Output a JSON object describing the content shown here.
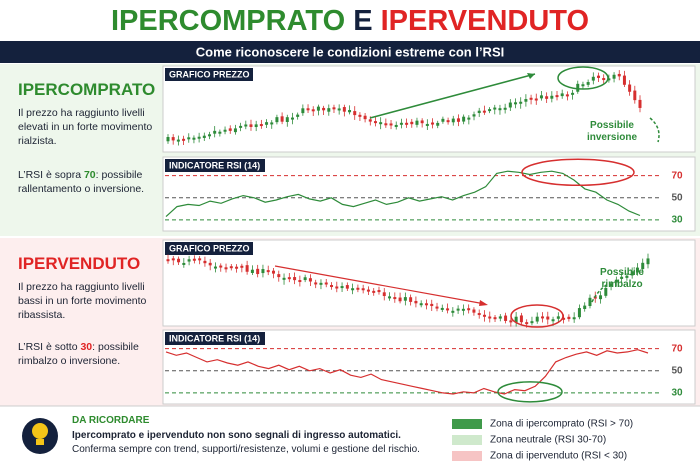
{
  "header": {
    "title_a": "IPERCOMPRATO",
    "title_b": "E",
    "title_c": "IPERVENDUTO",
    "subtitle": "Come riconoscere le condizioni estreme con l’RSI"
  },
  "sections": [
    {
      "heading": "IPERCOMPRATO",
      "text": "Il prezzo ha raggiunto livelli elevati in un forte movimento rialzista.",
      "rsi_text_a": "L’RSI è sopra",
      "rsi_level": 70,
      "rsi_text_b": ": possibile rallentamento o inversione.",
      "price_label": "GRAFICO PREZZO",
      "annotation": "Possibile inversione",
      "rsi_label": "INDICATORE RSI (14)",
      "rsi": {
        "ylim": [
          20,
          85
        ],
        "yticks": [
          70,
          50,
          30
        ],
        "values": [
          33,
          42,
          44,
          43,
          47,
          45,
          49,
          52,
          50,
          46,
          48,
          51,
          53,
          49,
          47,
          50,
          44,
          42,
          45,
          48,
          44,
          46,
          50,
          47,
          49,
          51,
          48,
          52,
          55,
          60,
          72,
          74,
          73,
          71,
          73,
          74,
          72,
          66,
          58,
          55,
          48,
          44,
          38,
          34
        ]
      }
    },
    {
      "heading": "IPERVENDUTO",
      "text": "Il prezzo ha raggiunto livelli bassi in un forte movimento ribassista.",
      "rsi_text_a": "L’RSI è sotto",
      "rsi_level": 30,
      "rsi_text_b": ": possibile rimbalzo o inversione.",
      "price_label": "GRAFICO PREZZO",
      "annotation": "Possibile rimbalzo",
      "rsi_label": "INDICATORE RSI (14)",
      "rsi": {
        "ylim": [
          20,
          85
        ],
        "yticks": [
          70,
          50,
          30
        ],
        "values": [
          67,
          64,
          66,
          62,
          58,
          60,
          57,
          55,
          58,
          54,
          52,
          55,
          51,
          54,
          50,
          52,
          48,
          51,
          46,
          44,
          47,
          42,
          40,
          38,
          36,
          34,
          32,
          30,
          29,
          31,
          30,
          34,
          31,
          29,
          33,
          32,
          36,
          45,
          58,
          62,
          65,
          67,
          64,
          68,
          66,
          67,
          69,
          66
        ]
      }
    }
  ],
  "footer": {
    "label": "DA RICORDARE",
    "line1": "Ipercomprato e ipervenduto non sono segnali di ingresso automatici.",
    "line2": "Conferma sempre con trend, supporti/resistenze, volumi e gestione del rischio."
  },
  "legend": [
    {
      "label": "Zona di ipercomprato (RSI > 70)",
      "color": "#3f9a4a"
    },
    {
      "label": "Zona neutrale (RSI 30-70)",
      "color": "#cfe9cc"
    },
    {
      "label": "Zona di ipervenduto (RSI < 30)",
      "color": "#f6c4c4"
    }
  ]
}
